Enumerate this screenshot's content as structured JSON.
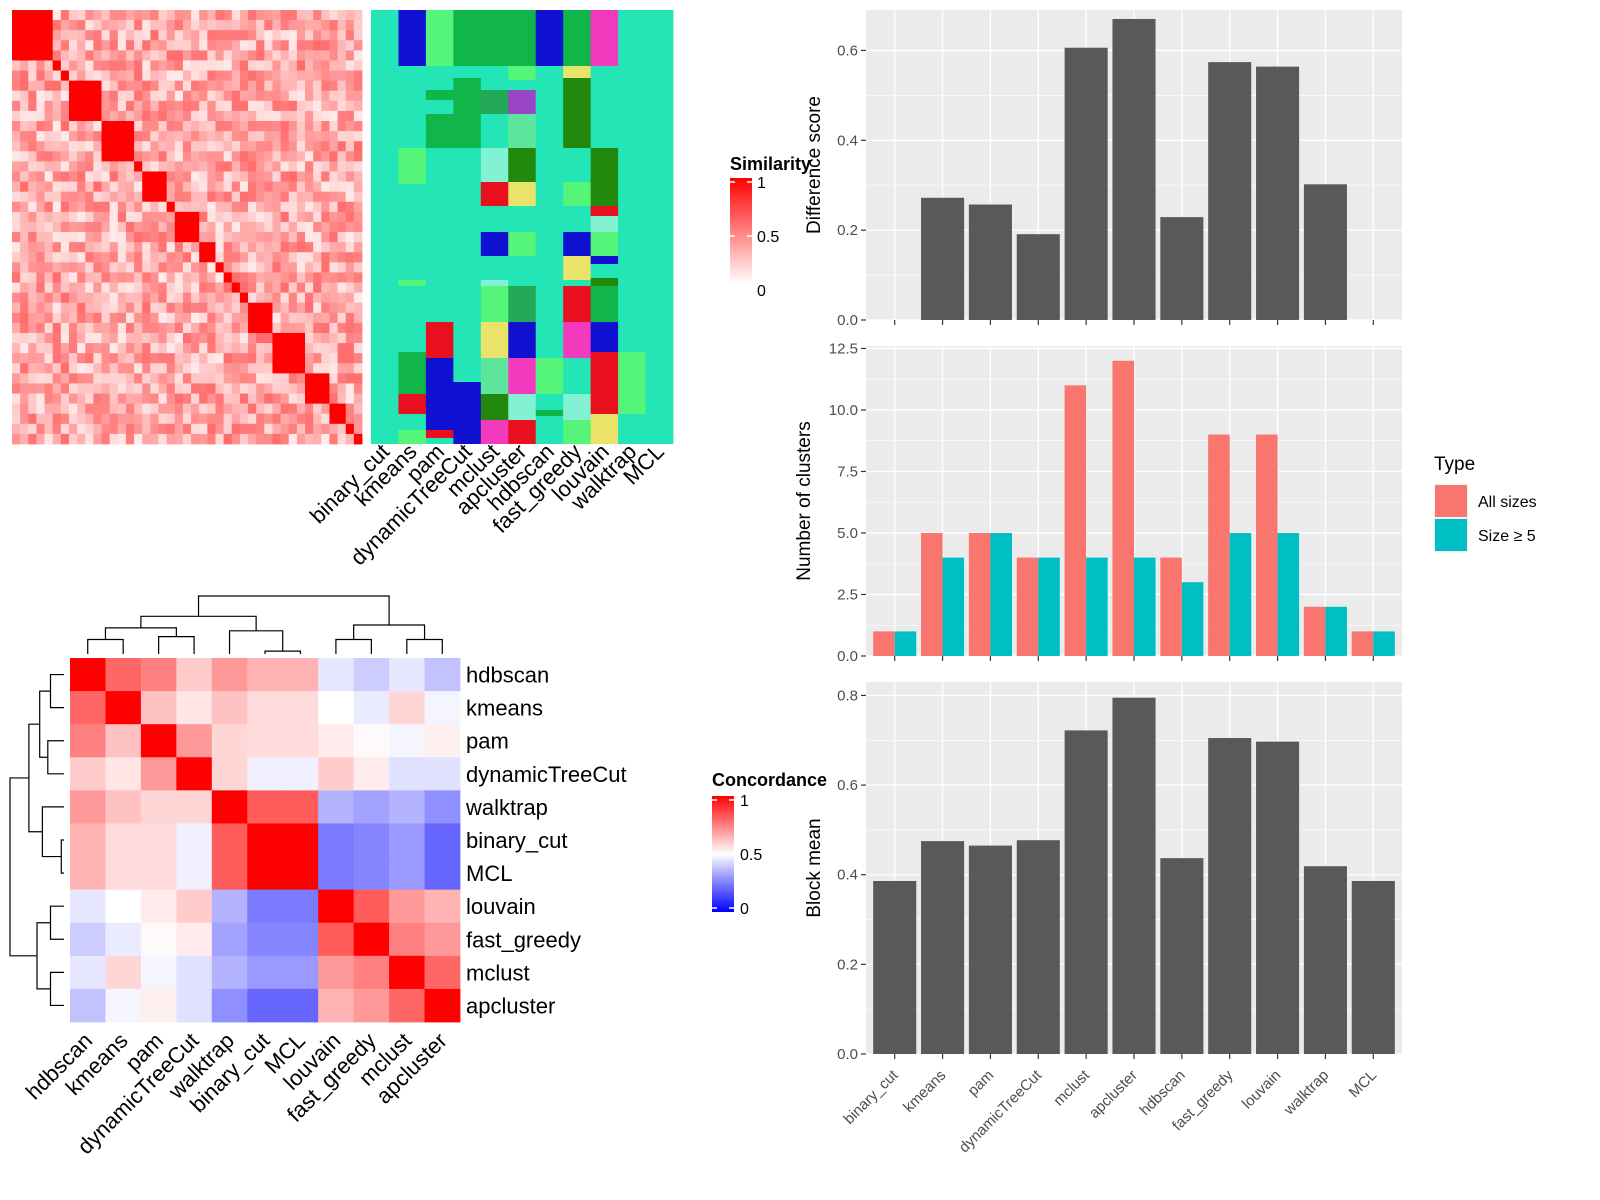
{
  "methods": [
    "binary_cut",
    "kmeans",
    "pam",
    "dynamicTreeCut",
    "mclust",
    "apcluster",
    "hdbscan",
    "fast_greedy",
    "louvain",
    "walktrap",
    "MCL"
  ],
  "similarity_legend": {
    "title": "Similarity",
    "ticks": [
      "1",
      "0.5",
      "0"
    ]
  },
  "concordance_legend": {
    "title": "Concordance",
    "ticks": [
      "1",
      "0.5",
      "0"
    ]
  },
  "chart_data": [
    {
      "type": "heatmap",
      "name": "similarity-matrix",
      "legend_title": "Similarity",
      "diagonal_blocks": [
        5,
        1,
        1,
        4,
        4,
        1,
        3,
        1,
        3,
        2,
        1,
        1,
        1,
        1,
        3,
        4,
        3,
        2,
        1,
        1
      ],
      "off_diagonal_range": [
        0,
        0.6
      ]
    },
    {
      "type": "heatmap",
      "name": "cluster-membership",
      "columns": [
        "binary_cut",
        "kmeans",
        "pam",
        "dynamicTreeCut",
        "mclust",
        "apcluster",
        "hdbscan",
        "fast_greedy",
        "louvain",
        "walktrap",
        "MCL"
      ]
    },
    {
      "type": "heatmap",
      "name": "concordance-matrix",
      "legend_title": "Concordance",
      "rows": [
        "hdbscan",
        "kmeans",
        "pam",
        "dynamicTreeCut",
        "walktrap",
        "binary_cut",
        "MCL",
        "louvain",
        "fast_greedy",
        "mclust",
        "apcluster"
      ],
      "cols": [
        "hdbscan",
        "kmeans",
        "pam",
        "dynamicTreeCut",
        "walktrap",
        "binary_cut",
        "MCL",
        "louvain",
        "fast_greedy",
        "mclust",
        "apcluster"
      ],
      "values": [
        [
          1.0,
          0.8,
          0.75,
          0.6,
          0.7,
          0.65,
          0.65,
          0.45,
          0.4,
          0.45,
          0.38
        ],
        [
          0.8,
          1.0,
          0.62,
          0.55,
          0.62,
          0.57,
          0.57,
          0.5,
          0.46,
          0.58,
          0.48
        ],
        [
          0.75,
          0.62,
          1.0,
          0.7,
          0.58,
          0.57,
          0.57,
          0.54,
          0.51,
          0.48,
          0.53
        ],
        [
          0.6,
          0.55,
          0.7,
          1.0,
          0.58,
          0.47,
          0.47,
          0.6,
          0.54,
          0.44,
          0.44
        ],
        [
          0.7,
          0.62,
          0.58,
          0.58,
          1.0,
          0.82,
          0.82,
          0.35,
          0.32,
          0.35,
          0.28
        ],
        [
          0.65,
          0.57,
          0.57,
          0.47,
          0.82,
          1.0,
          1.0,
          0.24,
          0.26,
          0.3,
          0.2
        ],
        [
          0.65,
          0.57,
          0.57,
          0.47,
          0.82,
          1.0,
          1.0,
          0.24,
          0.26,
          0.3,
          0.2
        ],
        [
          0.45,
          0.5,
          0.54,
          0.6,
          0.35,
          0.24,
          0.24,
          1.0,
          0.82,
          0.7,
          0.65
        ],
        [
          0.4,
          0.46,
          0.51,
          0.54,
          0.32,
          0.26,
          0.26,
          0.82,
          1.0,
          0.75,
          0.7
        ],
        [
          0.45,
          0.58,
          0.48,
          0.44,
          0.35,
          0.3,
          0.3,
          0.7,
          0.75,
          1.0,
          0.8
        ],
        [
          0.38,
          0.48,
          0.53,
          0.44,
          0.28,
          0.2,
          0.2,
          0.65,
          0.7,
          0.8,
          1.0
        ]
      ]
    },
    {
      "type": "bar",
      "name": "difference-score",
      "categories": [
        "binary_cut",
        "kmeans",
        "pam",
        "dynamicTreeCut",
        "mclust",
        "apcluster",
        "hdbscan",
        "fast_greedy",
        "louvain",
        "walktrap",
        "MCL"
      ],
      "values": [
        0,
        0.272,
        0.257,
        0.191,
        0.606,
        0.67,
        0.229,
        0.574,
        0.564,
        0.302,
        0
      ],
      "ylabel": "Difference score",
      "ylim": [
        0,
        0.69
      ],
      "yticks": [
        "0.0",
        "0.2",
        "0.4",
        "0.6"
      ]
    },
    {
      "type": "bar",
      "name": "number-of-clusters",
      "categories": [
        "binary_cut",
        "kmeans",
        "pam",
        "dynamicTreeCut",
        "mclust",
        "apcluster",
        "hdbscan",
        "fast_greedy",
        "louvain",
        "walktrap",
        "MCL"
      ],
      "series": [
        {
          "name": "All sizes",
          "color": "#F8766D",
          "values": [
            1,
            5,
            5,
            4,
            11,
            12,
            4,
            9,
            9,
            2,
            1
          ]
        },
        {
          "name": "Size ≥ 5",
          "color": "#00BFC4",
          "values": [
            1,
            4,
            5,
            4,
            4,
            4,
            3,
            5,
            5,
            2,
            1
          ]
        }
      ],
      "ylabel": "Number of clusters",
      "ylim": [
        0,
        12.6
      ],
      "yticks": [
        "0.0",
        "2.5",
        "5.0",
        "7.5",
        "10.0",
        "12.5"
      ],
      "legend": {
        "title": "Type",
        "position": "right"
      }
    },
    {
      "type": "bar",
      "name": "block-mean",
      "categories": [
        "binary_cut",
        "kmeans",
        "pam",
        "dynamicTreeCut",
        "mclust",
        "apcluster",
        "hdbscan",
        "fast_greedy",
        "louvain",
        "walktrap",
        "MCL"
      ],
      "values": [
        0.386,
        0.475,
        0.465,
        0.477,
        0.722,
        0.795,
        0.437,
        0.705,
        0.697,
        0.419,
        0.386
      ],
      "ylabel": "Block mean",
      "ylim": [
        0,
        0.83
      ],
      "yticks": [
        "0.0",
        "0.2",
        "0.4",
        "0.6",
        "0.8"
      ]
    }
  ]
}
